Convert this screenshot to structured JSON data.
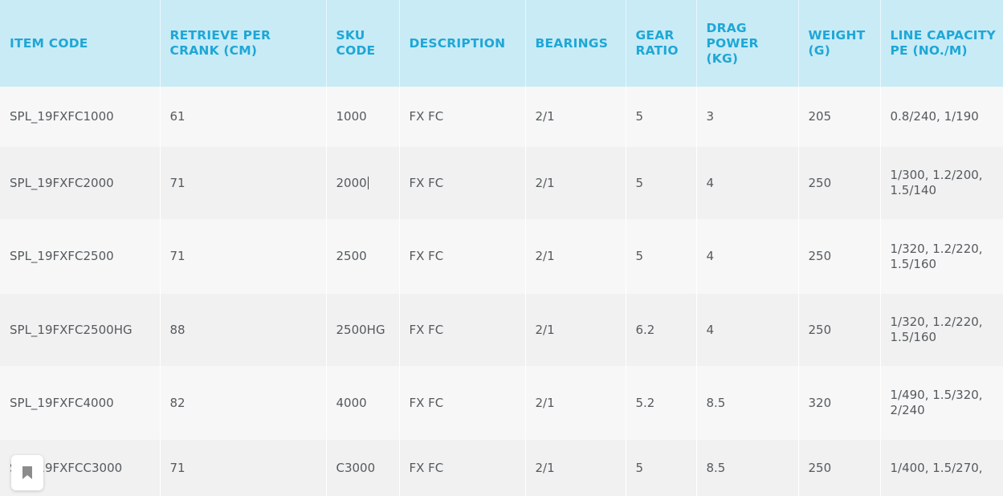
{
  "table": {
    "headers": [
      "ITEM CODE",
      "RETRIEVE PER CRANK (CM)",
      "SKU CODE",
      "DESCRIPTION",
      "BEARINGS",
      "GEAR RATIO",
      "DRAG POWER (KG)",
      "WEIGHT (G)",
      "LINE CAPACITY PE (NO./M)"
    ],
    "rows": [
      [
        "SPL_19FXFC1000",
        "61",
        "1000",
        "FX FC",
        "2/1",
        "5",
        "3",
        "205",
        "0.8/240, 1/190"
      ],
      [
        "SPL_19FXFC2000",
        "71",
        "2000",
        "FX FC",
        "2/1",
        "5",
        "4",
        "250",
        "1/300, 1.2/200, 1.5/140"
      ],
      [
        "SPL_19FXFC2500",
        "71",
        "2500",
        "FX FC",
        "2/1",
        "5",
        "4",
        "250",
        "1/320, 1.2/220, 1.5/160"
      ],
      [
        "SPL_19FXFC2500HG",
        "88",
        "2500HG",
        "FX FC",
        "2/1",
        "6.2",
        "4",
        "250",
        "1/320, 1.2/220, 1.5/160"
      ],
      [
        "SPL_19FXFC4000",
        "82",
        "4000",
        "FX FC",
        "2/1",
        "5.2",
        "8.5",
        "320",
        "1/490, 1.5/320, 2/240"
      ],
      [
        "SPL_19FXFCC3000",
        "71",
        "C3000",
        "FX FC",
        "2/1",
        "5",
        "8.5",
        "250",
        "1/400, 1.5/270,"
      ]
    ]
  },
  "colors": {
    "header_bg": "#c8ebf6",
    "header_text": "#1ea7d6",
    "body_text": "#555a5e"
  },
  "overlay": {
    "icon": "bookmark-icon"
  }
}
